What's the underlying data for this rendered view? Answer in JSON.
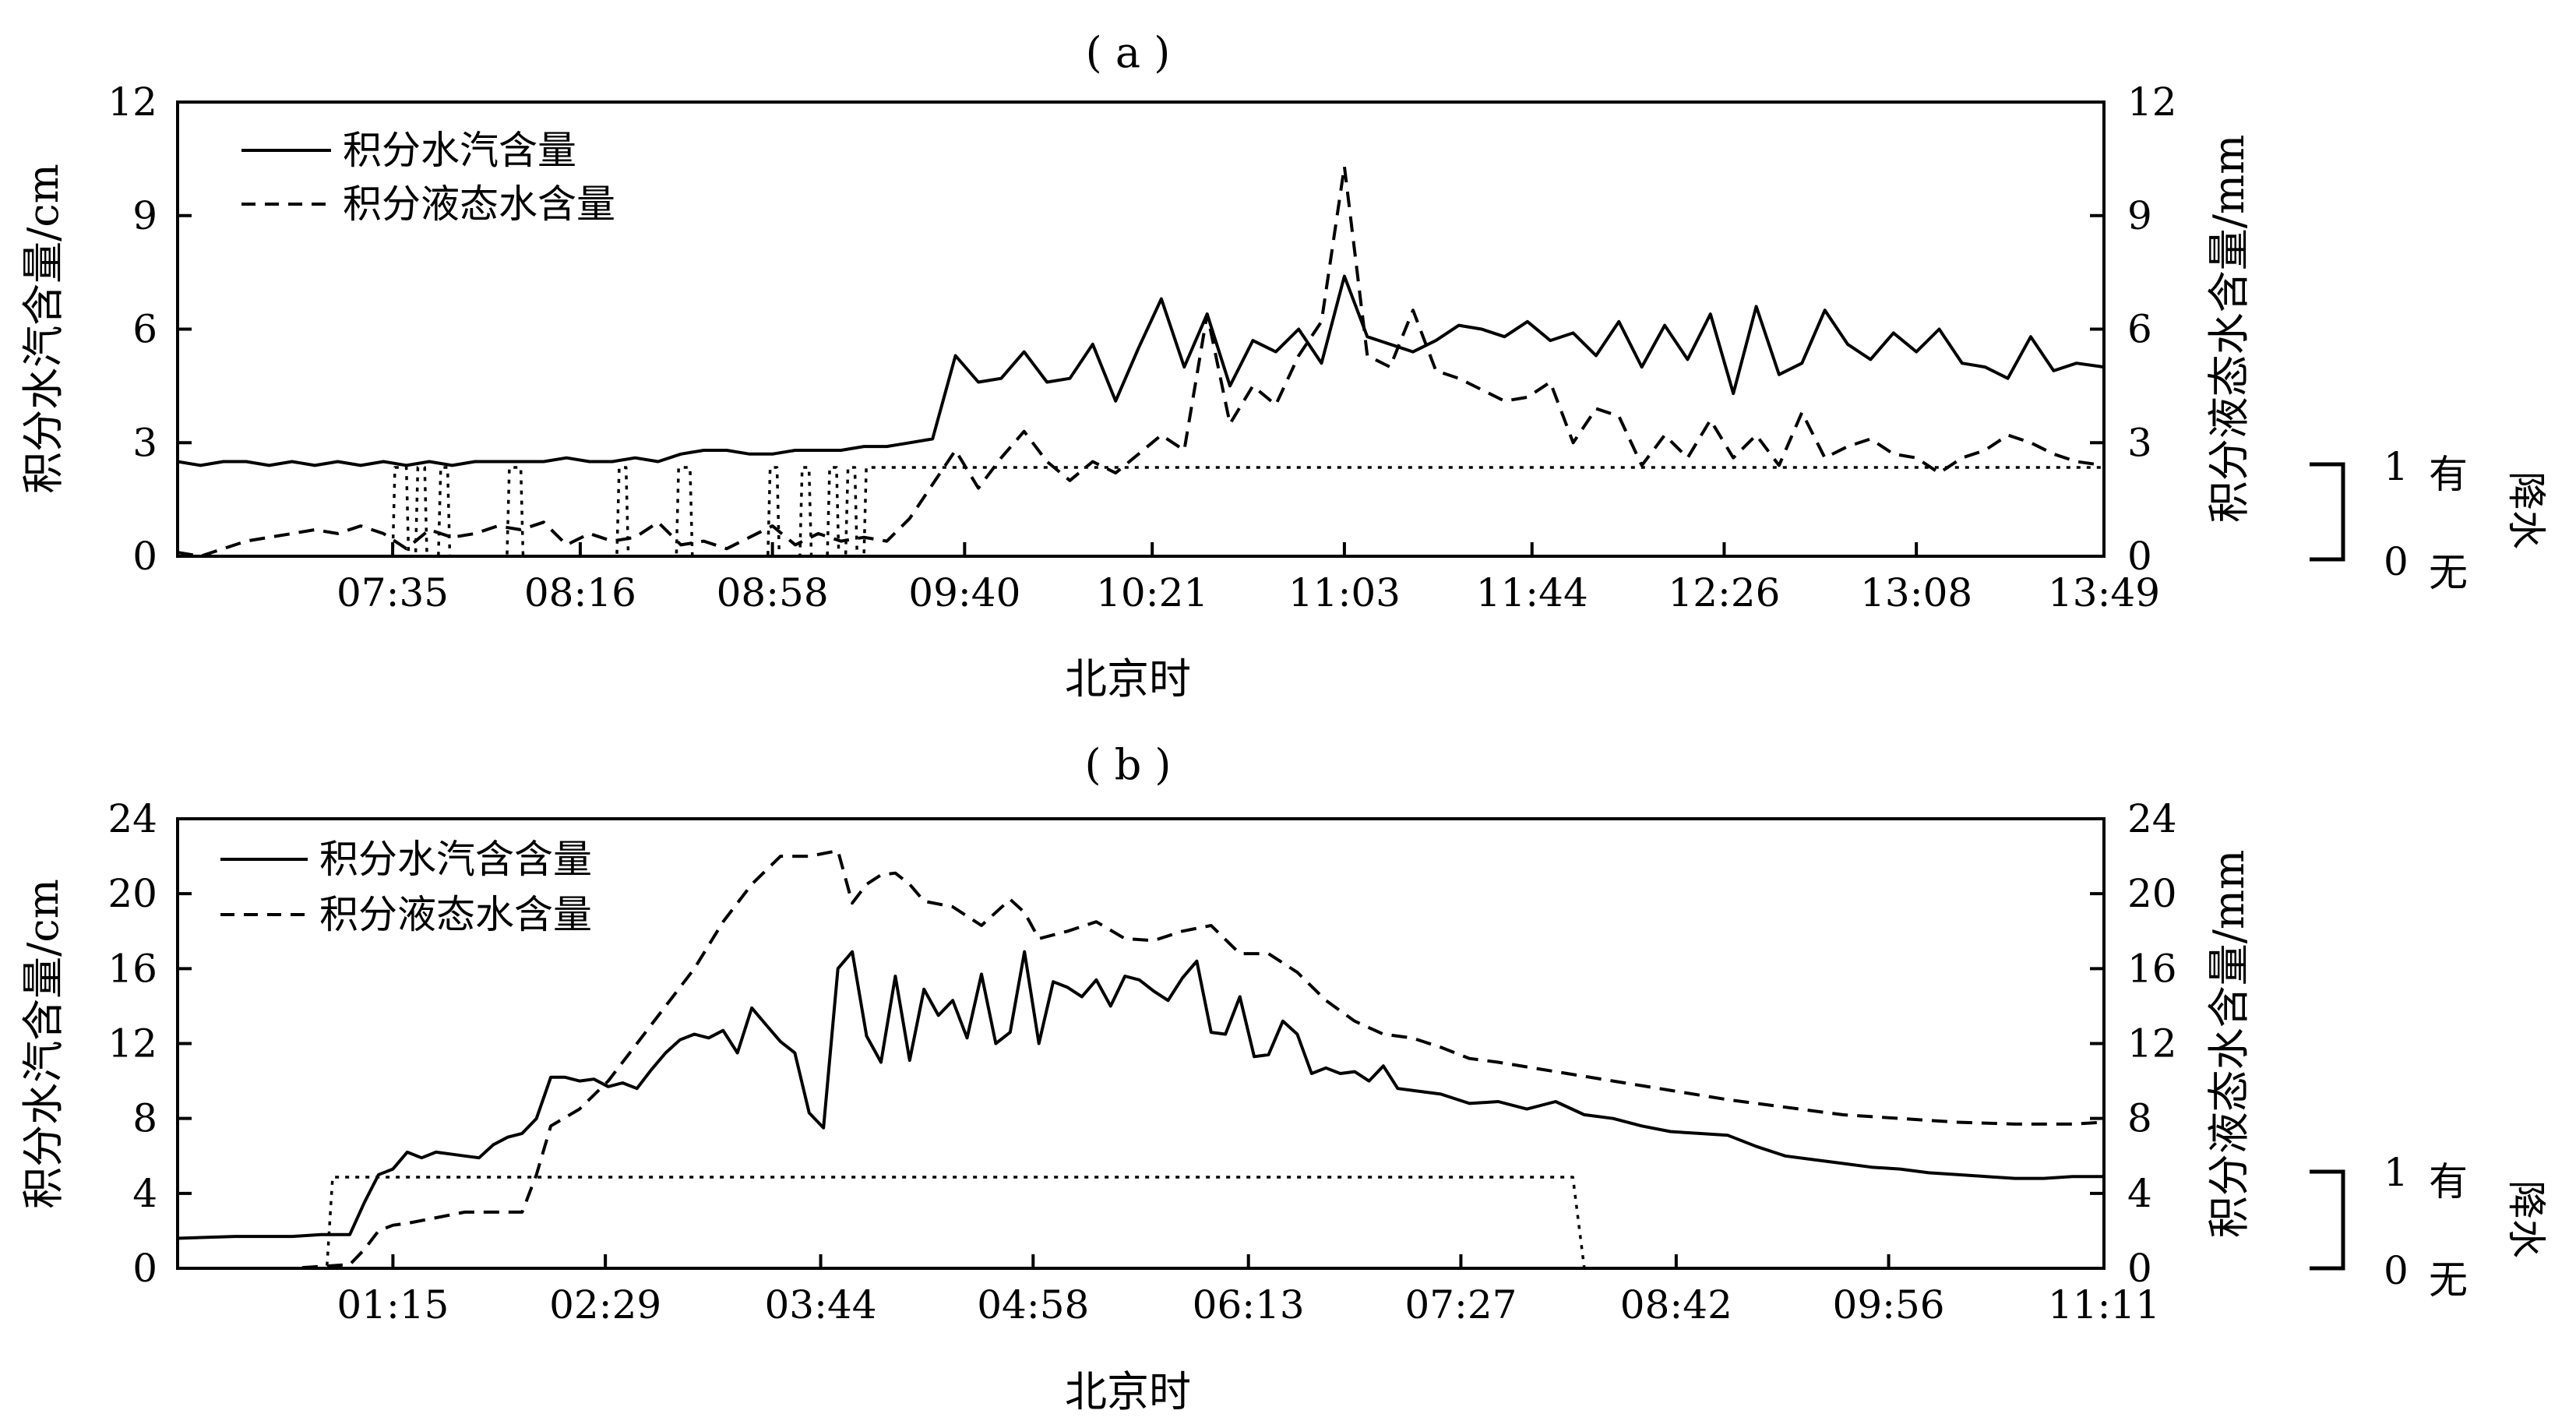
{
  "chart_data": [
    {
      "panel": "(a)",
      "type": "line",
      "title": "( a )",
      "xlabel": "北京时",
      "ylabel_left": "积分水汽含量/cm",
      "ylabel_right": "积分液态水含量/mm",
      "x_ticks": [
        "07:35",
        "08:16",
        "08:58",
        "09:40",
        "10:21",
        "11:03",
        "11:44",
        "12:26",
        "13:08",
        "13:49"
      ],
      "x_tick_minutes": [
        455,
        496,
        538,
        580,
        621,
        663,
        704,
        746,
        788,
        829
      ],
      "xlim_minutes": [
        408,
        829
      ],
      "y_ticks_left": [
        0,
        3,
        6,
        9,
        12
      ],
      "y_ticks_right": [
        0,
        3,
        6,
        9,
        12
      ],
      "ylim_left": [
        0,
        12
      ],
      "ylim_right": [
        0,
        12
      ],
      "grid": false,
      "legend": {
        "position": "top-left",
        "items": [
          {
            "label": "积分水汽含量",
            "style": "solid"
          },
          {
            "label": "积分液态水含量",
            "style": "dashed"
          }
        ]
      },
      "precip_indicator": {
        "ticks": [
          "1",
          "0"
        ],
        "labels": [
          "有",
          "无"
        ],
        "title": "降水"
      },
      "series": [
        {
          "style": "solid",
          "axis": "left",
          "x": [
            408,
            413,
            418,
            423,
            428,
            433,
            438,
            443,
            448,
            453,
            458,
            463,
            468,
            473,
            478,
            483,
            488,
            493,
            498,
            503,
            508,
            513,
            518,
            523,
            528,
            533,
            538,
            543,
            548,
            553,
            558,
            563,
            568,
            573,
            578,
            583,
            588,
            593,
            598,
            603,
            608,
            613,
            618,
            623,
            628,
            633,
            638,
            643,
            648,
            653,
            658,
            663,
            668,
            673,
            678,
            683,
            688,
            693,
            698,
            703,
            708,
            713,
            718,
            723,
            728,
            733,
            738,
            743,
            748,
            753,
            758,
            763,
            768,
            773,
            778,
            783,
            788,
            793,
            798,
            803,
            808,
            813,
            818,
            823,
            829
          ],
          "y": [
            2.5,
            2.4,
            2.5,
            2.5,
            2.4,
            2.5,
            2.4,
            2.5,
            2.4,
            2.5,
            2.4,
            2.5,
            2.4,
            2.5,
            2.5,
            2.5,
            2.5,
            2.6,
            2.5,
            2.5,
            2.6,
            2.5,
            2.7,
            2.8,
            2.8,
            2.7,
            2.7,
            2.8,
            2.8,
            2.8,
            2.9,
            2.9,
            3.0,
            3.1,
            5.3,
            4.6,
            4.7,
            5.4,
            4.6,
            4.7,
            5.6,
            4.1,
            5.5,
            6.8,
            5.0,
            6.4,
            4.5,
            5.7,
            5.4,
            6.0,
            5.1,
            7.4,
            5.8,
            5.6,
            5.4,
            5.7,
            6.1,
            6.0,
            5.8,
            6.2,
            5.7,
            5.9,
            5.3,
            6.2,
            5.0,
            6.1,
            5.2,
            6.4,
            4.3,
            6.6,
            4.8,
            5.1,
            6.5,
            5.6,
            5.2,
            5.9,
            5.4,
            6.0,
            5.1,
            5.0,
            4.7,
            5.8,
            4.9,
            5.1,
            5.0
          ]
        },
        {
          "style": "dashed",
          "axis": "right",
          "x": [
            408,
            413,
            418,
            423,
            428,
            433,
            438,
            443,
            448,
            453,
            458,
            463,
            468,
            473,
            478,
            483,
            488,
            493,
            498,
            503,
            508,
            513,
            518,
            523,
            528,
            533,
            538,
            543,
            548,
            553,
            558,
            563,
            568,
            573,
            578,
            583,
            588,
            593,
            598,
            603,
            608,
            613,
            618,
            623,
            628,
            633,
            638,
            643,
            648,
            653,
            658,
            663,
            668,
            673,
            678,
            683,
            688,
            693,
            698,
            703,
            708,
            713,
            718,
            723,
            728,
            733,
            738,
            743,
            748,
            753,
            758,
            763,
            768,
            773,
            778,
            783,
            788,
            793,
            798,
            803,
            808,
            813,
            818,
            823,
            829
          ],
          "y": [
            0.1,
            0.0,
            0.2,
            0.4,
            0.5,
            0.6,
            0.7,
            0.6,
            0.8,
            0.6,
            0.2,
            0.7,
            0.5,
            0.6,
            0.8,
            0.7,
            0.9,
            0.3,
            0.6,
            0.4,
            0.5,
            0.9,
            0.3,
            0.4,
            0.2,
            0.5,
            0.8,
            0.3,
            0.6,
            0.4,
            0.5,
            0.4,
            1.0,
            1.9,
            2.8,
            1.8,
            2.6,
            3.3,
            2.5,
            2.0,
            2.5,
            2.2,
            2.7,
            3.2,
            2.8,
            6.4,
            3.5,
            4.5,
            4.0,
            5.3,
            6.2,
            10.3,
            5.3,
            5.0,
            6.5,
            4.9,
            4.7,
            4.4,
            4.1,
            4.2,
            4.6,
            3.0,
            3.9,
            3.7,
            2.4,
            3.2,
            2.6,
            3.6,
            2.6,
            3.2,
            2.4,
            3.8,
            2.6,
            2.9,
            3.1,
            2.7,
            2.6,
            2.2,
            2.6,
            2.8,
            3.2,
            3.0,
            2.7,
            2.5,
            2.4
          ]
        },
        {
          "style": "dotted",
          "axis": "precipitation",
          "x": [
            408,
            455,
            455.5,
            458,
            458.5,
            460,
            460.5,
            462,
            462.5,
            465,
            465.5,
            467,
            467.5,
            480,
            480.5,
            483,
            483.5,
            504,
            504.5,
            506,
            506.5,
            517,
            517.5,
            520,
            520.5,
            537,
            537.5,
            539,
            539.5,
            544,
            544.5,
            546,
            546.5,
            550,
            550.5,
            552,
            552.5,
            554,
            554.5,
            556,
            556.5,
            558,
            558.5,
            561,
            561.5,
            829
          ],
          "y": [
            0,
            0,
            1,
            1,
            0,
            0,
            1,
            1,
            0,
            0,
            1,
            1,
            0,
            0,
            1,
            1,
            0,
            0,
            1,
            1,
            0,
            0,
            1,
            1,
            0,
            0,
            1,
            1,
            0,
            0,
            1,
            1,
            0,
            0,
            1,
            1,
            0,
            0,
            1,
            1,
            0,
            0,
            1,
            1,
            1,
            1
          ]
        }
      ]
    },
    {
      "panel": "(b)",
      "type": "line",
      "title": "( b )",
      "xlabel": "北京时",
      "ylabel_left": "积分水汽含量/cm",
      "ylabel_right": "积分液态水含量/mm",
      "x_ticks": [
        "01:15",
        "02:29",
        "03:44",
        "04:58",
        "06:13",
        "07:27",
        "08:42",
        "09:56",
        "11:11"
      ],
      "x_tick_minutes": [
        75,
        149,
        224,
        298,
        373,
        447,
        522,
        596,
        671
      ],
      "xlim_minutes": [
        0,
        671
      ],
      "y_ticks_left": [
        0,
        4,
        8,
        12,
        16,
        20,
        24
      ],
      "y_ticks_right": [
        0,
        4,
        8,
        12,
        16,
        20,
        24
      ],
      "ylim_left": [
        0,
        24
      ],
      "ylim_right": [
        0,
        24
      ],
      "grid": false,
      "legend": {
        "position": "top-left",
        "items": [
          {
            "label": "积分水汽含含量",
            "style": "solid"
          },
          {
            "label": "积分液态水含量",
            "style": "dashed"
          }
        ]
      },
      "precip_indicator": {
        "ticks": [
          "1",
          "0"
        ],
        "labels": [
          "有",
          "无"
        ],
        "title": "降水"
      },
      "series": [
        {
          "style": "solid",
          "axis": "left",
          "x": [
            0,
            20,
            40,
            50,
            60,
            65,
            70,
            75,
            80,
            85,
            90,
            95,
            100,
            105,
            110,
            115,
            120,
            125,
            130,
            135,
            140,
            145,
            150,
            155,
            160,
            165,
            170,
            175,
            180,
            185,
            190,
            195,
            200,
            205,
            210,
            215,
            220,
            225,
            230,
            235,
            240,
            245,
            250,
            255,
            260,
            265,
            270,
            275,
            280,
            285,
            290,
            295,
            300,
            305,
            310,
            315,
            320,
            325,
            330,
            335,
            340,
            345,
            350,
            355,
            360,
            365,
            370,
            375,
            380,
            385,
            390,
            395,
            400,
            405,
            410,
            415,
            420,
            425,
            430,
            440,
            450,
            460,
            470,
            480,
            490,
            500,
            510,
            520,
            530,
            540,
            550,
            560,
            570,
            580,
            590,
            600,
            610,
            620,
            630,
            640,
            650,
            660,
            671
          ],
          "y": [
            1.6,
            1.7,
            1.7,
            1.8,
            1.8,
            3.5,
            5.0,
            5.3,
            6.2,
            5.9,
            6.2,
            6.1,
            6.0,
            5.9,
            6.6,
            7.0,
            7.2,
            8.0,
            10.2,
            10.2,
            10.0,
            10.1,
            9.7,
            9.9,
            9.6,
            10.6,
            11.5,
            12.2,
            12.5,
            12.3,
            12.7,
            11.5,
            13.9,
            13.0,
            12.1,
            11.5,
            8.3,
            7.5,
            16.0,
            16.9,
            12.4,
            11.0,
            15.6,
            11.1,
            14.9,
            13.5,
            14.3,
            12.3,
            15.7,
            12.0,
            12.6,
            16.9,
            12.0,
            15.3,
            15.0,
            14.5,
            15.4,
            14.0,
            15.6,
            15.4,
            14.8,
            14.3,
            15.5,
            16.4,
            12.6,
            12.5,
            14.5,
            11.3,
            11.4,
            13.2,
            12.5,
            10.4,
            10.7,
            10.4,
            10.5,
            10.0,
            10.8,
            9.6,
            9.5,
            9.3,
            8.8,
            8.9,
            8.5,
            8.9,
            8.2,
            8.0,
            7.6,
            7.3,
            7.2,
            7.1,
            6.5,
            6.0,
            5.8,
            5.6,
            5.4,
            5.3,
            5.1,
            5.0,
            4.9,
            4.8,
            4.8,
            4.9,
            4.9
          ]
        },
        {
          "style": "dashed",
          "axis": "right",
          "x": [
            0,
            20,
            40,
            50,
            60,
            65,
            70,
            75,
            80,
            90,
            100,
            110,
            120,
            125,
            130,
            140,
            150,
            160,
            170,
            180,
            190,
            200,
            210,
            220,
            230,
            235,
            240,
            245,
            250,
            255,
            260,
            270,
            280,
            290,
            295,
            300,
            310,
            320,
            330,
            340,
            350,
            360,
            370,
            380,
            390,
            400,
            410,
            420,
            430,
            440,
            450,
            460,
            480,
            500,
            520,
            540,
            560,
            580,
            600,
            620,
            640,
            660,
            671
          ],
          "y": [
            0,
            0,
            0,
            0.1,
            0.2,
            1.0,
            2.0,
            2.3,
            2.4,
            2.7,
            3.0,
            3.0,
            3.0,
            5.0,
            7.6,
            8.5,
            10.0,
            12.0,
            14.0,
            16.0,
            18.5,
            20.5,
            22.0,
            22.0,
            22.3,
            19.5,
            20.5,
            21.0,
            21.1,
            20.5,
            19.6,
            19.3,
            18.3,
            19.7,
            19.0,
            17.6,
            18.0,
            18.5,
            17.6,
            17.5,
            18.0,
            18.3,
            16.8,
            16.8,
            15.8,
            14.3,
            13.2,
            12.5,
            12.3,
            11.8,
            11.2,
            11.0,
            10.5,
            10.0,
            9.5,
            9.0,
            8.6,
            8.2,
            8.0,
            7.8,
            7.7,
            7.7,
            7.8
          ]
        },
        {
          "style": "dotted",
          "axis": "precipitation",
          "x": [
            0,
            52,
            54,
            486,
            490,
            671
          ],
          "y": [
            0,
            0,
            1,
            1,
            0,
            0
          ]
        }
      ]
    }
  ]
}
